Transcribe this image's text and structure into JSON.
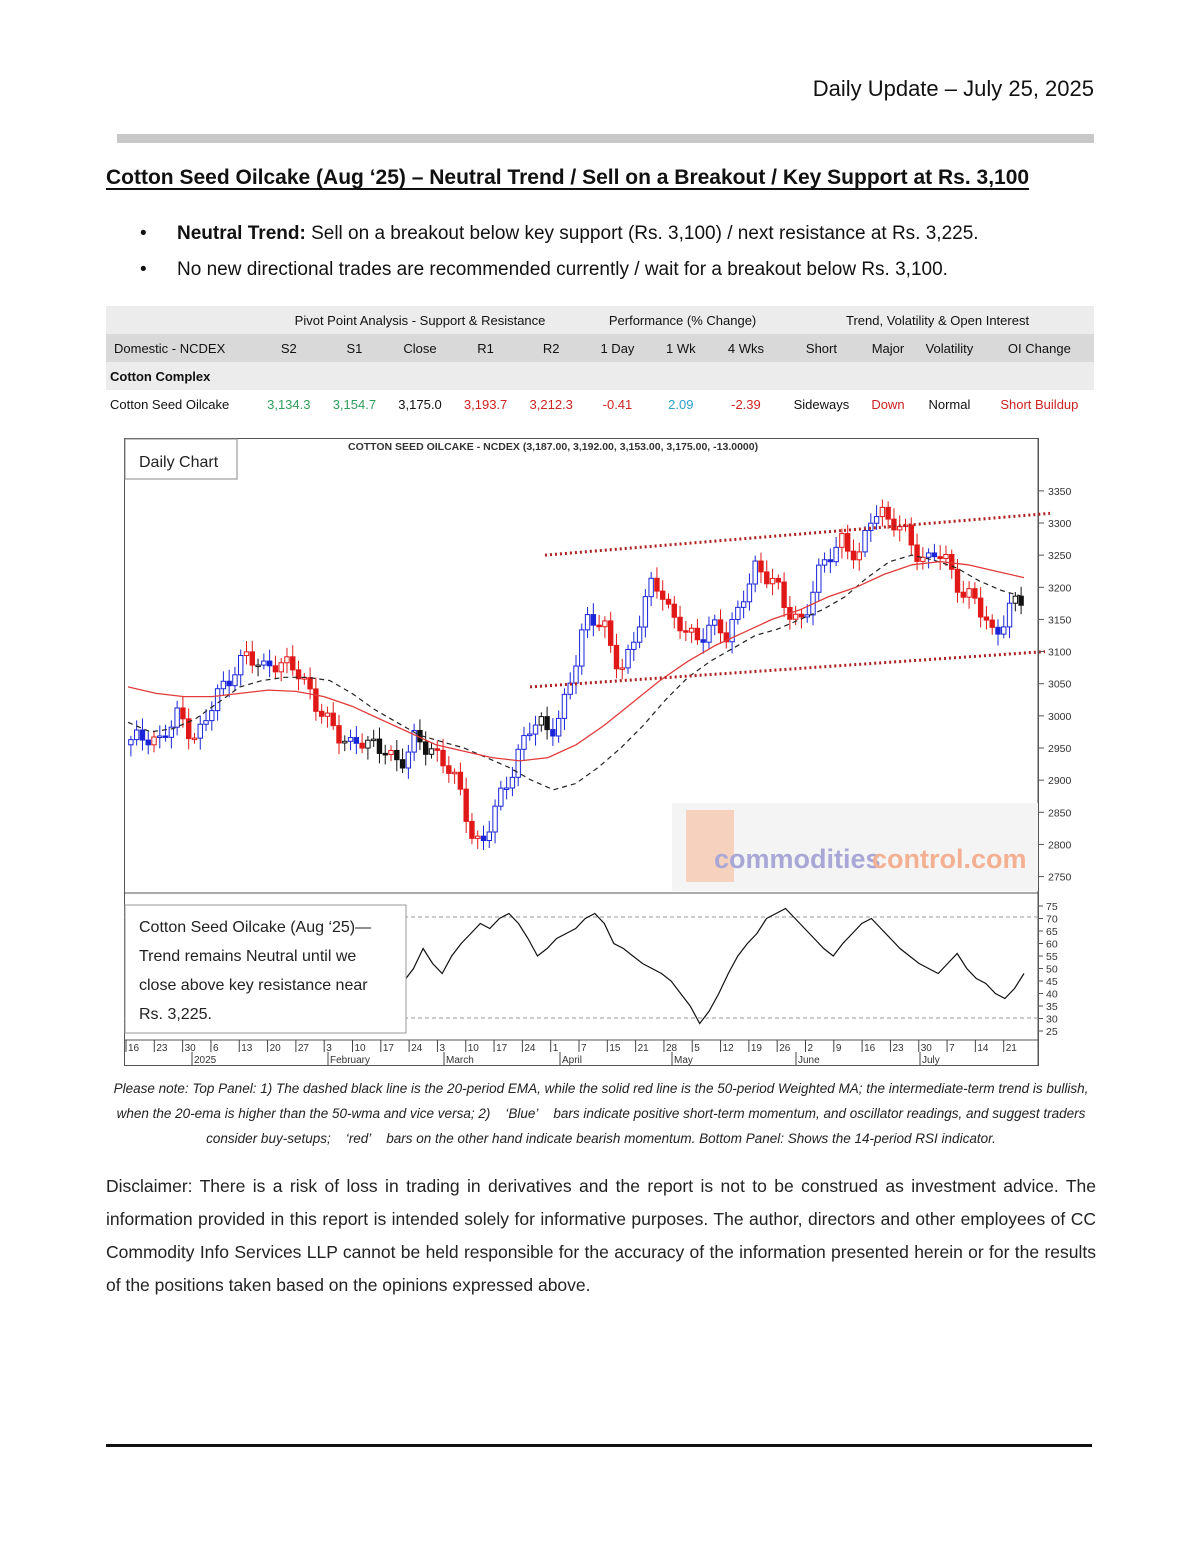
{
  "header": {
    "date": "Daily Update – July 25, 2025"
  },
  "title": "Cotton Seed Oilcake (Aug    ‘25) – Neutral Trend / Sell on a Breakout / Key Support at Rs. 3,100",
  "bullets": [
    {
      "bold": "Neutral Trend:",
      "text": " Sell on a breakout below key support (Rs. 3,100) / next resistance at Rs. 3,225."
    },
    {
      "bold": "",
      "text": "No new directional trades are recommended currently / wait for a breakout below Rs. 3,100."
    }
  ],
  "table": {
    "groups": [
      "Pivot Point Analysis - Support & Resistance",
      "Performance (% Change)",
      "Trend, Volatility & Open Interest"
    ],
    "columns": [
      "Domestic - NCDEX",
      "S2",
      "S1",
      "Close",
      "R1",
      "R2",
      "1 Day",
      "1 Wk",
      "4 Wks",
      "Short",
      "Major",
      "Volatility",
      "OI Change"
    ],
    "section": "Cotton Complex",
    "row": [
      "Cotton Seed Oilcake",
      "3,134.3",
      "3,154.7",
      "3,175.0",
      "3,193.7",
      "3,212.3",
      "-0.41",
      "2.09",
      "-2.39",
      "Sideways",
      "Down",
      "Normal",
      "Short Buildup"
    ],
    "row_colors": [
      "#111111",
      "#2e9e5b",
      "#2e9e5b",
      "#111111",
      "#cc2222",
      "#cc2222",
      "#cc2222",
      "#2aa0c8",
      "#cc2222",
      "#111111",
      "#cc2222",
      "#111111",
      "#cc2222"
    ]
  },
  "chart": {
    "caption": "COTTON SEED OILCAKE - NCDEX (3,187.00, 3,192.00, 3,153.00, 3,175.00, -13.0000)",
    "label": "Daily Chart",
    "watermark_a": "commodities",
    "watermark_b": "control.com",
    "rsi_note": [
      "Cotton Seed Oilcake (Aug    ‘25)—",
      "Trend remains Neutral until we",
      "close above key resistance near",
      "Rs. 3,225."
    ],
    "y_ticks": [
      "3350",
      "3300",
      "3250",
      "3200",
      "3150",
      "3100",
      "3050",
      "3000",
      "2950",
      "2900",
      "2850",
      "2800",
      "2750"
    ],
    "rsi_ticks": [
      "75",
      "70",
      "65",
      "60",
      "55",
      "50",
      "45",
      "40",
      "35",
      "30",
      "25"
    ],
    "day_ticks": [
      "16",
      "23",
      "30",
      "6",
      "13",
      "20",
      "27",
      "3",
      "10",
      "17",
      "24",
      "3",
      "10",
      "17",
      "24",
      "1",
      "7",
      "15",
      "21",
      "28",
      "5",
      "12",
      "19",
      "26",
      "2",
      "9",
      "16",
      "23",
      "30",
      "7",
      "14",
      "21"
    ],
    "month_labels": [
      "2025",
      "February",
      "March",
      "April",
      "May",
      "June",
      "July"
    ]
  },
  "chart_data": {
    "type": "candlestick",
    "title": "COTTON SEED OILCAKE - NCDEX (3,187.00, 3,192.00, 3,153.00, 3,175.00, -13.0000)",
    "ylim": [
      2740,
      3370
    ],
    "rsi_ylim": [
      25,
      75
    ],
    "close_path": [
      2955,
      2965,
      2975,
      2960,
      2975,
      3000,
      2985,
      2970,
      2990,
      3030,
      3050,
      3080,
      3090,
      3080,
      3075,
      3090,
      3080,
      3070,
      3060,
      3040,
      3010,
      2980,
      2965,
      2960,
      2970,
      2950,
      2945,
      2950,
      2935,
      2930,
      2960,
      2955,
      2950,
      2930,
      2900,
      2870,
      2820,
      2800,
      2830,
      2870,
      2910,
      2950,
      2975,
      2985,
      2980,
      2995,
      3030,
      3080,
      3150,
      3160,
      3140,
      3080,
      3070,
      3120,
      3170,
      3200,
      3190,
      3160,
      3150,
      3120,
      3110,
      3140,
      3150,
      3120,
      3150,
      3200,
      3240,
      3220,
      3200,
      3170,
      3160,
      3150,
      3190,
      3230,
      3260,
      3280,
      3250,
      3240,
      3310,
      3330,
      3300,
      3290,
      3280,
      3260,
      3240,
      3250,
      3240,
      3220,
      3190,
      3180,
      3150,
      3130,
      3150,
      3170,
      3175
    ],
    "ema20_path": [
      2990,
      2975,
      2980,
      2995,
      3020,
      3045,
      3055,
      3060,
      3060,
      3055,
      3035,
      3010,
      2990,
      2970,
      2960,
      2950,
      2935,
      2920,
      2900,
      2885,
      2895,
      2920,
      2950,
      2985,
      3025,
      3060,
      3085,
      3105,
      3125,
      3135,
      3150,
      3165,
      3185,
      3215,
      3240,
      3250,
      3242,
      3230,
      3210,
      3195,
      3185
    ],
    "wma50_path": [
      3045,
      3035,
      3030,
      3030,
      3035,
      3040,
      3038,
      3030,
      3015,
      2995,
      2975,
      2955,
      2945,
      2935,
      2930,
      2935,
      2955,
      2985,
      3020,
      3055,
      3085,
      3110,
      3130,
      3150,
      3165,
      3185,
      3200,
      3220,
      3235,
      3240,
      3235,
      3225,
      3215
    ],
    "resistance_line": [
      [
        545,
        3250
      ],
      [
        1050,
        3315
      ]
    ],
    "support_line": [
      [
        530,
        3045
      ],
      [
        1045,
        3100
      ]
    ],
    "rsi_path": [
      45,
      50,
      58,
      52,
      48,
      55,
      60,
      64,
      68,
      66,
      70,
      72,
      68,
      62,
      55,
      58,
      62,
      64,
      66,
      70,
      72,
      68,
      60,
      58,
      55,
      52,
      50,
      48,
      45,
      40,
      35,
      28,
      33,
      40,
      48,
      55,
      60,
      64,
      70,
      72,
      74,
      70,
      66,
      62,
      58,
      55,
      60,
      64,
      68,
      70,
      66,
      62,
      58,
      55,
      52,
      50,
      48,
      52,
      56,
      50,
      46,
      44,
      40,
      38,
      42,
      48
    ]
  }
}
